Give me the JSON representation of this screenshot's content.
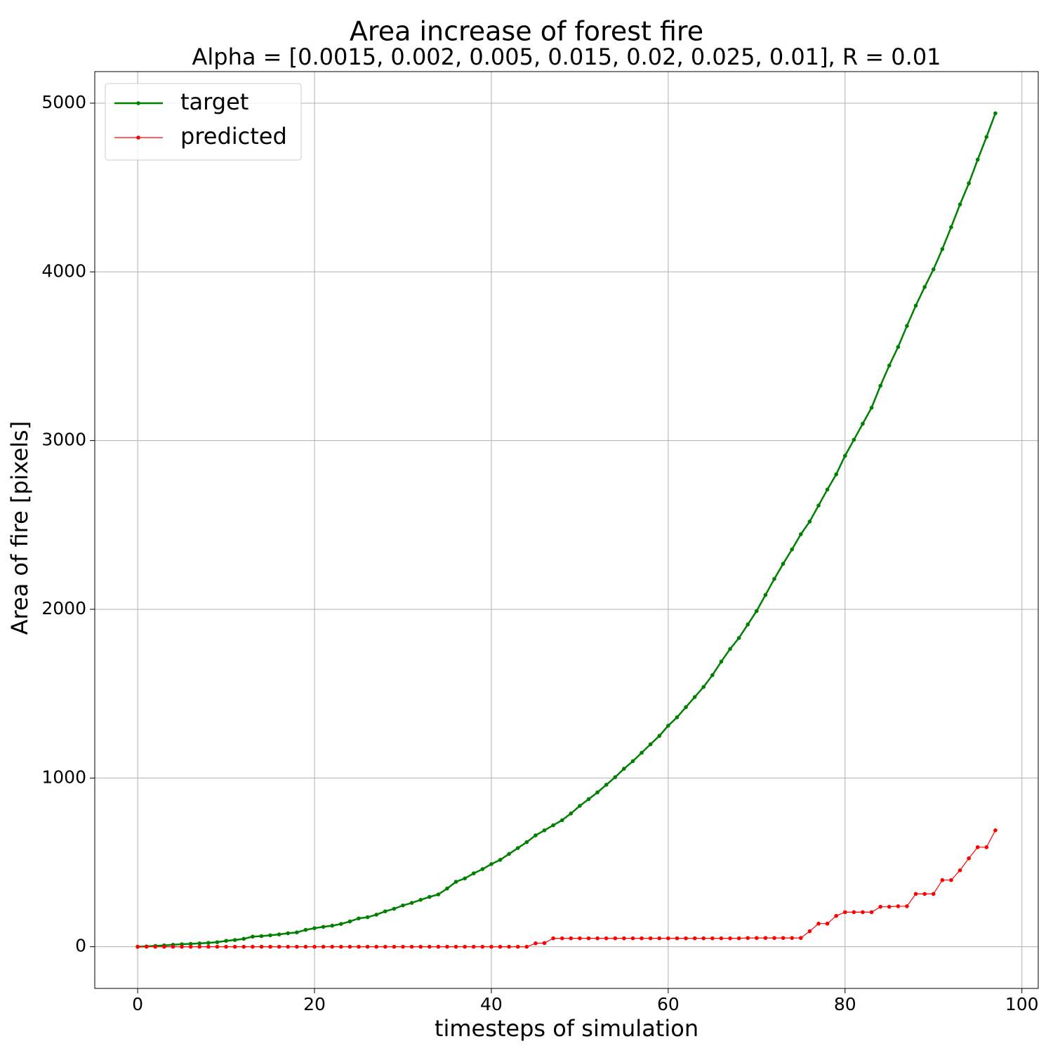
{
  "chart_data": {
    "type": "line",
    "title": "Area increase of forest fire",
    "subtitle": "Alpha = [0.0015, 0.002, 0.005, 0.015, 0.02, 0.025, 0.01], R = 0.01",
    "xlabel": "timesteps of simulation",
    "ylabel": "Area of fire [pixels]",
    "x": [
      0,
      1,
      2,
      3,
      4,
      5,
      6,
      7,
      8,
      9,
      10,
      11,
      12,
      13,
      14,
      15,
      16,
      17,
      18,
      19,
      20,
      21,
      22,
      23,
      24,
      25,
      26,
      27,
      28,
      29,
      30,
      31,
      32,
      33,
      34,
      35,
      36,
      37,
      38,
      39,
      40,
      41,
      42,
      43,
      44,
      45,
      46,
      47,
      48,
      49,
      50,
      51,
      52,
      53,
      54,
      55,
      56,
      57,
      58,
      59,
      60,
      61,
      62,
      63,
      64,
      65,
      66,
      67,
      68,
      69,
      70,
      71,
      72,
      73,
      74,
      75,
      76,
      77,
      78,
      79,
      80,
      81,
      82,
      83,
      84,
      85,
      86,
      87,
      88,
      89,
      90,
      91,
      92,
      93,
      94,
      95,
      96,
      97
    ],
    "series": [
      {
        "name": "target",
        "color": "#008000",
        "values": [
          0,
          2,
          5,
          8,
          12,
          15,
          17,
          20,
          23,
          27,
          35,
          40,
          47,
          60,
          63,
          68,
          73,
          80,
          85,
          100,
          110,
          118,
          125,
          135,
          150,
          168,
          175,
          190,
          210,
          225,
          245,
          260,
          278,
          295,
          310,
          345,
          385,
          405,
          435,
          460,
          490,
          515,
          550,
          585,
          620,
          660,
          690,
          720,
          750,
          790,
          835,
          875,
          915,
          960,
          1005,
          1055,
          1100,
          1150,
          1200,
          1250,
          1310,
          1360,
          1420,
          1480,
          1540,
          1610,
          1690,
          1765,
          1830,
          1910,
          1990,
          2085,
          2180,
          2270,
          2355,
          2445,
          2520,
          2615,
          2710,
          2800,
          2910,
          3005,
          3100,
          3195,
          3325,
          3445,
          3555,
          3680,
          3800,
          3910,
          4015,
          4135,
          4265,
          4400,
          4525,
          4665,
          4800,
          4940
        ]
      },
      {
        "name": "predicted",
        "color": "#ff0000",
        "values": [
          0,
          0,
          0,
          0,
          0,
          0,
          0,
          0,
          0,
          0,
          0,
          0,
          0,
          0,
          0,
          0,
          0,
          0,
          0,
          0,
          0,
          0,
          0,
          0,
          0,
          0,
          0,
          0,
          0,
          0,
          0,
          0,
          0,
          0,
          0,
          0,
          0,
          0,
          0,
          0,
          0,
          0,
          0,
          0,
          0,
          20,
          22,
          50,
          50,
          50,
          50,
          50,
          50,
          50,
          50,
          50,
          50,
          50,
          50,
          50,
          50,
          50,
          50,
          50,
          50,
          50,
          50,
          50,
          50,
          52,
          52,
          52,
          52,
          52,
          52,
          52,
          92,
          137,
          137,
          183,
          205,
          205,
          205,
          205,
          237,
          237,
          240,
          240,
          313,
          313,
          313,
          395,
          395,
          453,
          524,
          590,
          590,
          690
        ]
      }
    ],
    "xlim": [
      -4.85,
      101.85
    ],
    "xticks": [
      0,
      20,
      40,
      60,
      80,
      100
    ],
    "ylim": [
      -247,
      5187
    ],
    "yticks": [
      0,
      1000,
      2000,
      3000,
      4000,
      5000
    ],
    "grid": true,
    "legend": "upper left"
  }
}
